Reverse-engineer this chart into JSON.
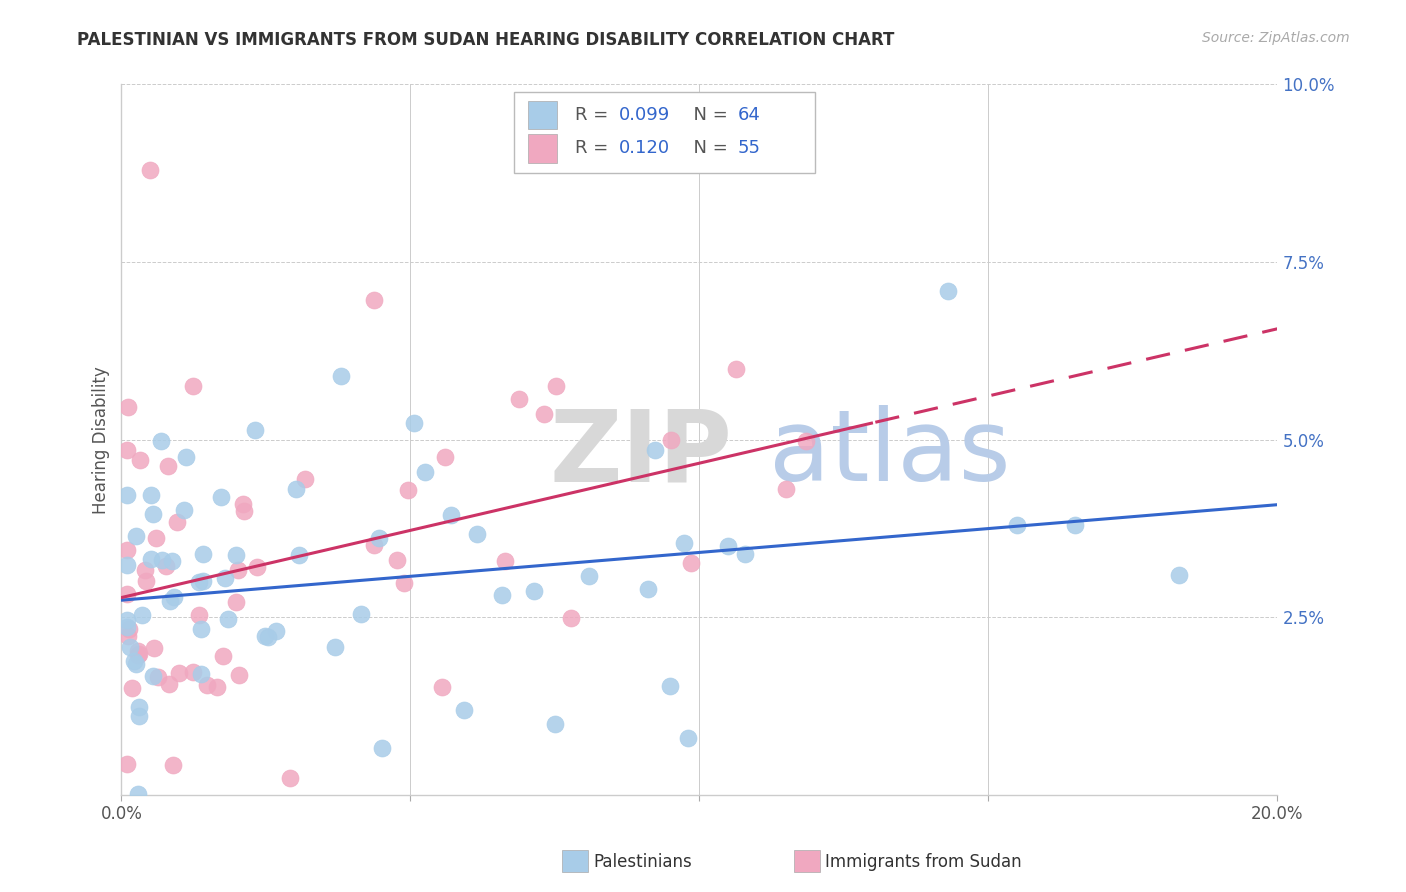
{
  "title": "PALESTINIAN VS IMMIGRANTS FROM SUDAN HEARING DISABILITY CORRELATION CHART",
  "source": "Source: ZipAtlas.com",
  "ylabel": "Hearing Disability",
  "xlim": [
    0.0,
    0.2
  ],
  "ylim": [
    0.0,
    0.1
  ],
  "legend_r1": "0.099",
  "legend_n1": "64",
  "legend_r2": "0.120",
  "legend_n2": "55",
  "blue_color": "#a8cce8",
  "pink_color": "#f0a8c0",
  "blue_line_color": "#3366CC",
  "pink_line_color": "#CC3366",
  "watermark_zip": "ZIP",
  "watermark_atlas": "atlas",
  "n_pal": 64,
  "n_sud": 55,
  "r_pal": 0.099,
  "r_sud": 0.12,
  "seed_pal": 42,
  "seed_sud": 99
}
